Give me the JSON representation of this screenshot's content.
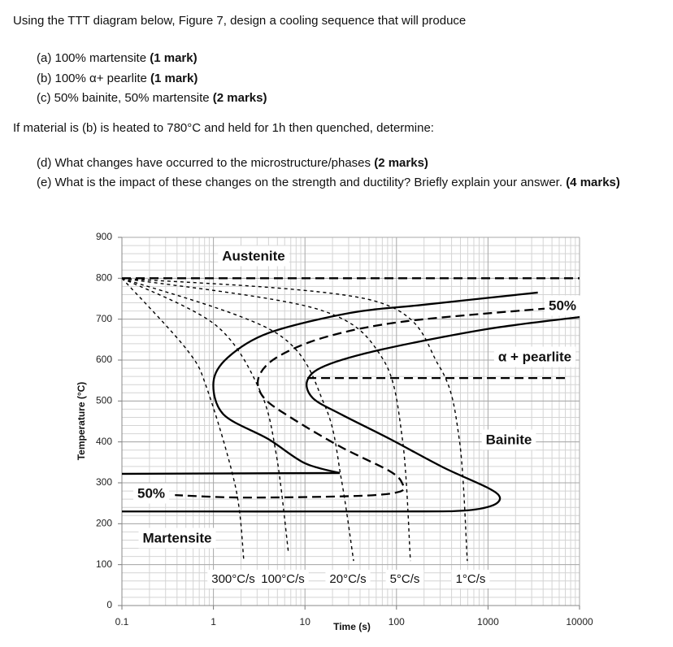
{
  "document": {
    "intro": "Using the TTT diagram below, Figure 7, design a cooling sequence that will produce",
    "parts_1": [
      {
        "text": "(a) 100% martensite",
        "marks": "(1 mark)"
      },
      {
        "text": "(b) 100% α+ pearlite",
        "marks": "(1 mark)"
      },
      {
        "text": "(c) 50% bainite, 50% martensite",
        "marks": "(2 marks)"
      }
    ],
    "condition": "If material is (b) is heated to 780°C and held for 1h then quenched, determine:",
    "parts_2": [
      {
        "text": "(d) What changes have occurred to the microstructure/phases",
        "marks": "(2 marks)"
      },
      {
        "text": "(e) What is the impact of these changes on the strength and ductility? Briefly explain your answer.",
        "marks": "(4 marks)"
      }
    ]
  },
  "chart_data": {
    "type": "line",
    "x_label": "Time (s)",
    "y_label": "Temperature (°C)",
    "log_x": true,
    "grid": true,
    "minor_grid": true,
    "xlim": [
      0.1,
      10000
    ],
    "xticks": [
      0.1,
      1,
      10,
      100,
      1000,
      10000
    ],
    "ylim": [
      0,
      900
    ],
    "yticks": [
      0,
      100,
      200,
      300,
      400,
      500,
      600,
      700,
      800,
      900
    ],
    "annotations": [
      "Austenite",
      "50%",
      "α + pearlite",
      "Bainite",
      "50%",
      "Martensite"
    ],
    "series": [
      {
        "color": "#000000",
        "line": "solid",
        "x": [
          3500,
          193,
          30.7,
          3.97,
          1.43,
          1.0,
          1.29,
          3.97,
          9.95,
          24
        ],
        "values": [
          765,
          735,
          715,
          666,
          606,
          546,
          467,
          407,
          348,
          324
        ]
      },
      {
        "color": "#000000",
        "line": "solid",
        "x": [
          0.1,
          24
        ],
        "values": [
          322,
          324
        ]
      },
      {
        "color": "#000000",
        "line": "solid",
        "x": [
          10000,
          990,
          69.5,
          16.6,
          10.6,
          12.2,
          25,
          85,
          322,
          990,
          1348,
          1100,
          537,
          100,
          0.1
        ],
        "values": [
          705,
          676,
          626,
          586,
          550,
          507,
          467,
          407,
          338,
          288,
          264,
          244,
          232,
          230,
          230
        ]
      },
      {
        "color": "#000000",
        "line": "dashed",
        "x": [
          6250,
          128,
          16.6,
          4.87,
          3.1,
          3.58,
          7.3,
          25,
          85,
          116,
          107,
          37.6,
          2.15,
          0.38
        ],
        "values": [
          729,
          695,
          656,
          606,
          556,
          507,
          457,
          387,
          328,
          298,
          278,
          268,
          264,
          270
        ]
      },
      {
        "color": "#000000",
        "line": "dashed",
        "x": [
          0.1,
          10000
        ],
        "values": [
          800,
          800
        ]
      },
      {
        "color": "#000000",
        "line": "dashed",
        "x": [
          10.6,
          6920
        ],
        "values": [
          556,
          556
        ]
      },
      {
        "name": "300°C/s",
        "color": "#000000",
        "line": "dotted",
        "x": [
          0.1,
          0.51,
          0.86,
          1.75,
          2.15
        ],
        "values": [
          800,
          626,
          527,
          288,
          109
        ]
      },
      {
        "name": "100°C/s",
        "color": "#000000",
        "line": "dotted",
        "x": [
          0.1,
          1.05,
          3.2,
          4.87,
          6.6
        ],
        "values": [
          800,
          686,
          527,
          368,
          129
        ]
      },
      {
        "name": "20°C/s",
        "color": "#000000",
        "line": "dotted",
        "x": [
          0.1,
          4.87,
          16.6,
          25,
          34
        ],
        "values": [
          800,
          666,
          487,
          308,
          109
        ]
      },
      {
        "name": "5°C/s",
        "color": "#000000",
        "line": "dotted",
        "x": [
          0.1,
          13.5,
          69.5,
          116,
          142
        ],
        "values": [
          800,
          725,
          606,
          407,
          109
        ]
      },
      {
        "name": "1°C/s",
        "color": "#000000",
        "line": "dotted",
        "x": [
          0.1,
          56.6,
          291,
          485,
          594
        ],
        "values": [
          800,
          745,
          586,
          407,
          109
        ]
      }
    ]
  }
}
